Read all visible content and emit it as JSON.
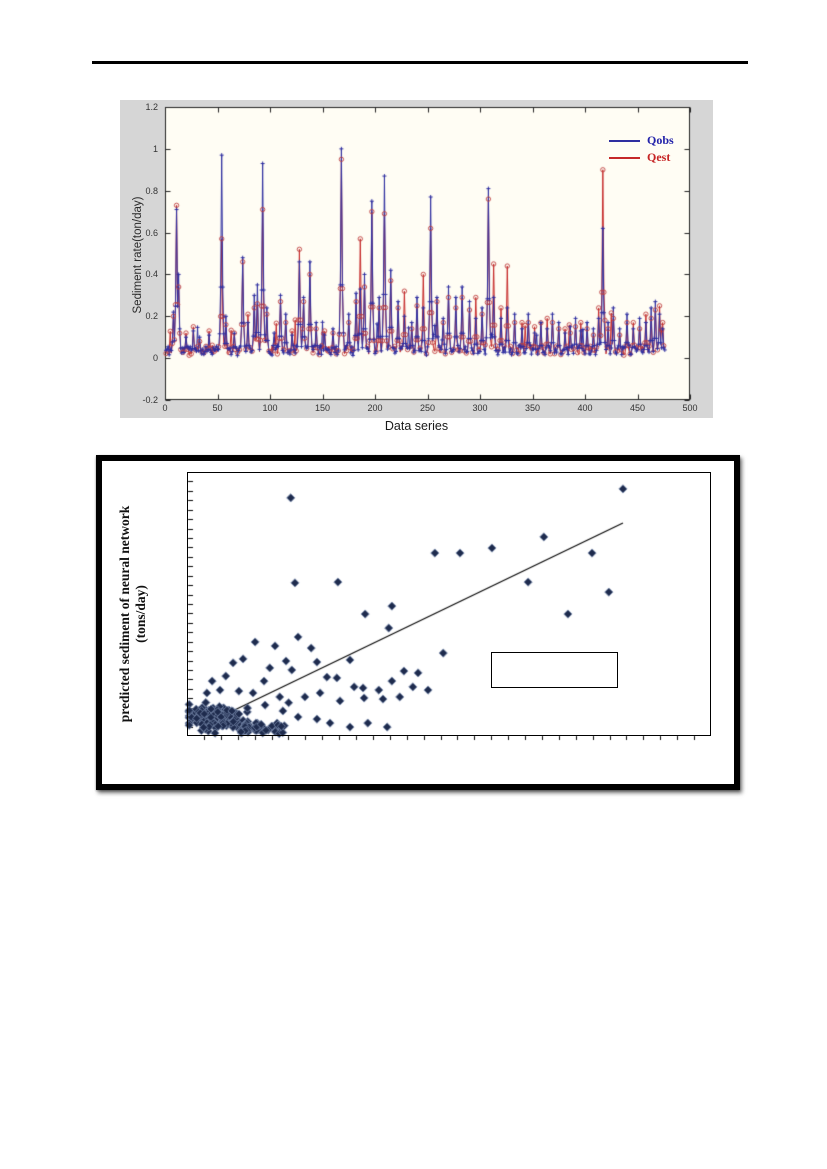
{
  "page": {
    "background": "#ffffff",
    "rule_color": "#000000"
  },
  "chart_data": [
    {
      "type": "line",
      "title": "",
      "xlabel": "Data series",
      "ylabel": "Sediment rate(ton/day)",
      "xlim": [
        0,
        500
      ],
      "ylim": [
        -0.2,
        1.2
      ],
      "grid": false,
      "figure_bg": "#d6d6d6",
      "plot_bg": "#fffdf4",
      "axis_color": "#222222",
      "x_tick_labels": [
        "0",
        "50",
        "100",
        "150",
        "200",
        "250",
        "300",
        "350",
        "400",
        "450",
        "500"
      ],
      "y_tick_labels": [
        "-0.2",
        "0",
        "0.2",
        "0.4",
        "0.6",
        "0.8",
        "1",
        "1.2"
      ],
      "legend": {
        "position": "top-right-inside",
        "entries": [
          {
            "label": "Qobs",
            "color": "#2222aa",
            "marker": "plus",
            "line_color": "#2e2ea0"
          },
          {
            "label": "Qest",
            "color": "#c62323",
            "marker": "circle",
            "line_color": "#c62828"
          }
        ]
      },
      "n_points": 476,
      "baseline": {
        "min": 0.012,
        "max": 0.062,
        "bump_chance": 0.05,
        "bump_max": 0.16,
        "seed_qobs": 11,
        "seed_qest": 29
      },
      "peaks_x_qobs_qest": [
        [
          8,
          0.22,
          0.2
        ],
        [
          11,
          0.71,
          0.73
        ],
        [
          13,
          0.4,
          0.34
        ],
        [
          20,
          0.1,
          0.12
        ],
        [
          27,
          0.13,
          0.15
        ],
        [
          33,
          0.1,
          0.08
        ],
        [
          42,
          0.11,
          0.13
        ],
        [
          54,
          0.97,
          0.57
        ],
        [
          58,
          0.2,
          0.16
        ],
        [
          66,
          0.1,
          0.12
        ],
        [
          74,
          0.48,
          0.46
        ],
        [
          79,
          0.17,
          0.21
        ],
        [
          85,
          0.3,
          0.24
        ],
        [
          88,
          0.35,
          0.26
        ],
        [
          93,
          0.93,
          0.71
        ],
        [
          97,
          0.24,
          0.21
        ],
        [
          104,
          0.12,
          0.1
        ],
        [
          110,
          0.3,
          0.27
        ],
        [
          115,
          0.21,
          0.17
        ],
        [
          121,
          0.11,
          0.13
        ],
        [
          128,
          0.46,
          0.52
        ],
        [
          132,
          0.29,
          0.27
        ],
        [
          138,
          0.46,
          0.4
        ],
        [
          144,
          0.17,
          0.14
        ],
        [
          152,
          0.11,
          0.13
        ],
        [
          160,
          0.14,
          0.12
        ],
        [
          168,
          1.0,
          0.95
        ],
        [
          175,
          0.21,
          0.17
        ],
        [
          182,
          0.31,
          0.27
        ],
        [
          186,
          0.33,
          0.57
        ],
        [
          190,
          0.4,
          0.34
        ],
        [
          197,
          0.75,
          0.7
        ],
        [
          204,
          0.29,
          0.24
        ],
        [
          209,
          0.87,
          0.69
        ],
        [
          215,
          0.42,
          0.37
        ],
        [
          222,
          0.27,
          0.24
        ],
        [
          228,
          0.2,
          0.32
        ],
        [
          235,
          0.17,
          0.14
        ],
        [
          240,
          0.29,
          0.25
        ],
        [
          246,
          0.24,
          0.4
        ],
        [
          253,
          0.77,
          0.62
        ],
        [
          259,
          0.29,
          0.27
        ],
        [
          265,
          0.19,
          0.17
        ],
        [
          270,
          0.34,
          0.29
        ],
        [
          277,
          0.29,
          0.24
        ],
        [
          283,
          0.34,
          0.29
        ],
        [
          290,
          0.27,
          0.23
        ],
        [
          296,
          0.19,
          0.29
        ],
        [
          302,
          0.24,
          0.21
        ],
        [
          308,
          0.81,
          0.76
        ],
        [
          313,
          0.29,
          0.45
        ],
        [
          320,
          0.19,
          0.24
        ],
        [
          326,
          0.24,
          0.44
        ],
        [
          333,
          0.21,
          0.17
        ],
        [
          340,
          0.14,
          0.17
        ],
        [
          346,
          0.21,
          0.17
        ],
        [
          352,
          0.12,
          0.15
        ],
        [
          358,
          0.17,
          0.14
        ],
        [
          364,
          0.14,
          0.19
        ],
        [
          369,
          0.21,
          0.17
        ],
        [
          375,
          0.17,
          0.14
        ],
        [
          381,
          0.12,
          0.14
        ],
        [
          386,
          0.15,
          0.12
        ],
        [
          391,
          0.19,
          0.15
        ],
        [
          396,
          0.13,
          0.17
        ],
        [
          402,
          0.17,
          0.14
        ],
        [
          408,
          0.14,
          0.11
        ],
        [
          413,
          0.19,
          0.24
        ],
        [
          417,
          0.62,
          0.9
        ],
        [
          422,
          0.17,
          0.14
        ],
        [
          427,
          0.24,
          0.19
        ],
        [
          433,
          0.14,
          0.11
        ],
        [
          440,
          0.21,
          0.17
        ],
        [
          446,
          0.14,
          0.17
        ],
        [
          452,
          0.19,
          0.14
        ],
        [
          458,
          0.17,
          0.21
        ],
        [
          463,
          0.24,
          0.19
        ],
        [
          467,
          0.27,
          0.23
        ],
        [
          471,
          0.21,
          0.25
        ],
        [
          474,
          0.14,
          0.17
        ]
      ]
    },
    {
      "type": "scatter",
      "title": "",
      "xlabel": "",
      "ylabel": "predicted sediment of neural network (tons/day)",
      "ylabel_lines": [
        "predicted sediment of neural network",
        "(tons/day)"
      ],
      "tick_labels": "none",
      "axis_tick_counts": {
        "x": 31,
        "y": 28
      },
      "frame_color": "#000000",
      "marker": {
        "shape": "diamond",
        "color": "#1e2b4d",
        "edge_color": "#7688aa"
      },
      "trendline_frac": {
        "x1": 0.067,
        "y1": 0.076,
        "x2": 0.832,
        "y2": 0.807,
        "color": "#000000"
      },
      "empty_box_frac": {
        "x": 0.58,
        "y_top": 0.318,
        "w": 0.242,
        "h": 0.136
      },
      "points_frac": [
        [
          0.832,
          0.936
        ],
        [
          0.198,
          0.902
        ],
        [
          0.473,
          0.693
        ],
        [
          0.521,
          0.693
        ],
        [
          0.681,
          0.754
        ],
        [
          0.582,
          0.712
        ],
        [
          0.773,
          0.693
        ],
        [
          0.206,
          0.58
        ],
        [
          0.288,
          0.583
        ],
        [
          0.651,
          0.583
        ],
        [
          0.805,
          0.545
        ],
        [
          0.727,
          0.462
        ],
        [
          0.391,
          0.492
        ],
        [
          0.34,
          0.462
        ],
        [
          0.385,
          0.409
        ],
        [
          0.212,
          0.375
        ],
        [
          0.13,
          0.356
        ],
        [
          0.168,
          0.341
        ],
        [
          0.489,
          0.314
        ],
        [
          0.107,
          0.292
        ],
        [
          0.088,
          0.277
        ],
        [
          0.189,
          0.284
        ],
        [
          0.248,
          0.28
        ],
        [
          0.158,
          0.258
        ],
        [
          0.2,
          0.25
        ],
        [
          0.391,
          0.208
        ],
        [
          0.336,
          0.182
        ],
        [
          0.074,
          0.227
        ],
        [
          0.048,
          0.208
        ],
        [
          0.147,
          0.208
        ],
        [
          0.267,
          0.223
        ],
        [
          0.286,
          0.22
        ],
        [
          0.319,
          0.186
        ],
        [
          0.366,
          0.174
        ],
        [
          0.431,
          0.186
        ],
        [
          0.46,
          0.174
        ],
        [
          0.254,
          0.163
        ],
        [
          0.225,
          0.148
        ],
        [
          0.177,
          0.148
        ],
        [
          0.126,
          0.163
        ],
        [
          0.099,
          0.17
        ],
        [
          0.063,
          0.174
        ],
        [
          0.038,
          0.163
        ],
        [
          0.292,
          0.133
        ],
        [
          0.338,
          0.144
        ],
        [
          0.374,
          0.14
        ],
        [
          0.406,
          0.148
        ],
        [
          0.149,
          0.117
        ],
        [
          0.183,
          0.095
        ],
        [
          0.115,
          0.091
        ],
        [
          0.08,
          0.098
        ],
        [
          0.05,
          0.106
        ],
        [
          0.212,
          0.072
        ],
        [
          0.248,
          0.064
        ],
        [
          0.273,
          0.049
        ],
        [
          0.172,
          0.049
        ],
        [
          0.134,
          0.049
        ],
        [
          0.092,
          0.053
        ],
        [
          0.311,
          0.034
        ],
        [
          0.345,
          0.049
        ],
        [
          0.382,
          0.034
        ],
        [
          0.237,
          0.333
        ],
        [
          0.311,
          0.288
        ],
        [
          0.414,
          0.246
        ],
        [
          0.441,
          0.239
        ],
        [
          0.194,
          0.126
        ]
      ],
      "cluster_blobs": [
        {
          "count": 170,
          "cx": 0.055,
          "cy": 0.075,
          "sx": 0.16,
          "sy": 0.12,
          "seed": 5
        },
        {
          "count": 45,
          "x_min": 0.02,
          "x_max": 0.19,
          "y_min": 0.008,
          "y_max": 0.05,
          "seed": 9
        }
      ]
    }
  ]
}
